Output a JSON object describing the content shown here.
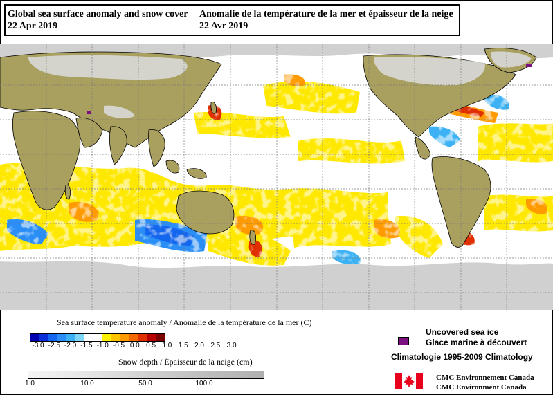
{
  "title": {
    "en_line1": "Global sea surface anomaly and snow cover",
    "en_line2": "22 Apr 2019",
    "fr_line1": "Anomalie de la température de la mer et épaisseur de la neige",
    "fr_line2": "22 Avr 2019"
  },
  "map": {
    "land_color": "#a99f5e",
    "ocean_neutral_color": "#ffffff",
    "sea_ice_color": "#d0d0d0",
    "grid_color": "#7a7a7a"
  },
  "sst_legend": {
    "title": "Sea surface temperature anomaly / Anomalie de la température de la mer (C)",
    "colors": [
      "#0000b0",
      "#0a2fd8",
      "#1566ee",
      "#2a8ef6",
      "#3cb2f4",
      "#7fd6f9",
      "#ffffff",
      "#ffffff",
      "#fff200",
      "#ffc400",
      "#ff9a00",
      "#f26a00",
      "#e03000",
      "#b80000",
      "#7a0000"
    ],
    "ticks": [
      "-3.0",
      "-2.5",
      "-2.0",
      "-1.5",
      "-1.0",
      "-0.5",
      "0.0",
      "0.5",
      "1.0",
      "1.5",
      "2.0",
      "2.5",
      "3.0"
    ]
  },
  "snow_legend": {
    "title": "Snow depth / Épaisseur de la neige (cm)",
    "ticks": [
      "1.0",
      "10.0",
      "50.0",
      "100.0"
    ]
  },
  "ice": {
    "swatch_color": "#7b1080",
    "en": "Uncovered sea ice",
    "fr": "Glace marine à découvert"
  },
  "climatology": "Climatologie 1995-2009 Climatology",
  "agency": {
    "fr": "CMC Environnement Canada",
    "en": "CMC Environment Canada",
    "flag_color": "#e8001c"
  }
}
